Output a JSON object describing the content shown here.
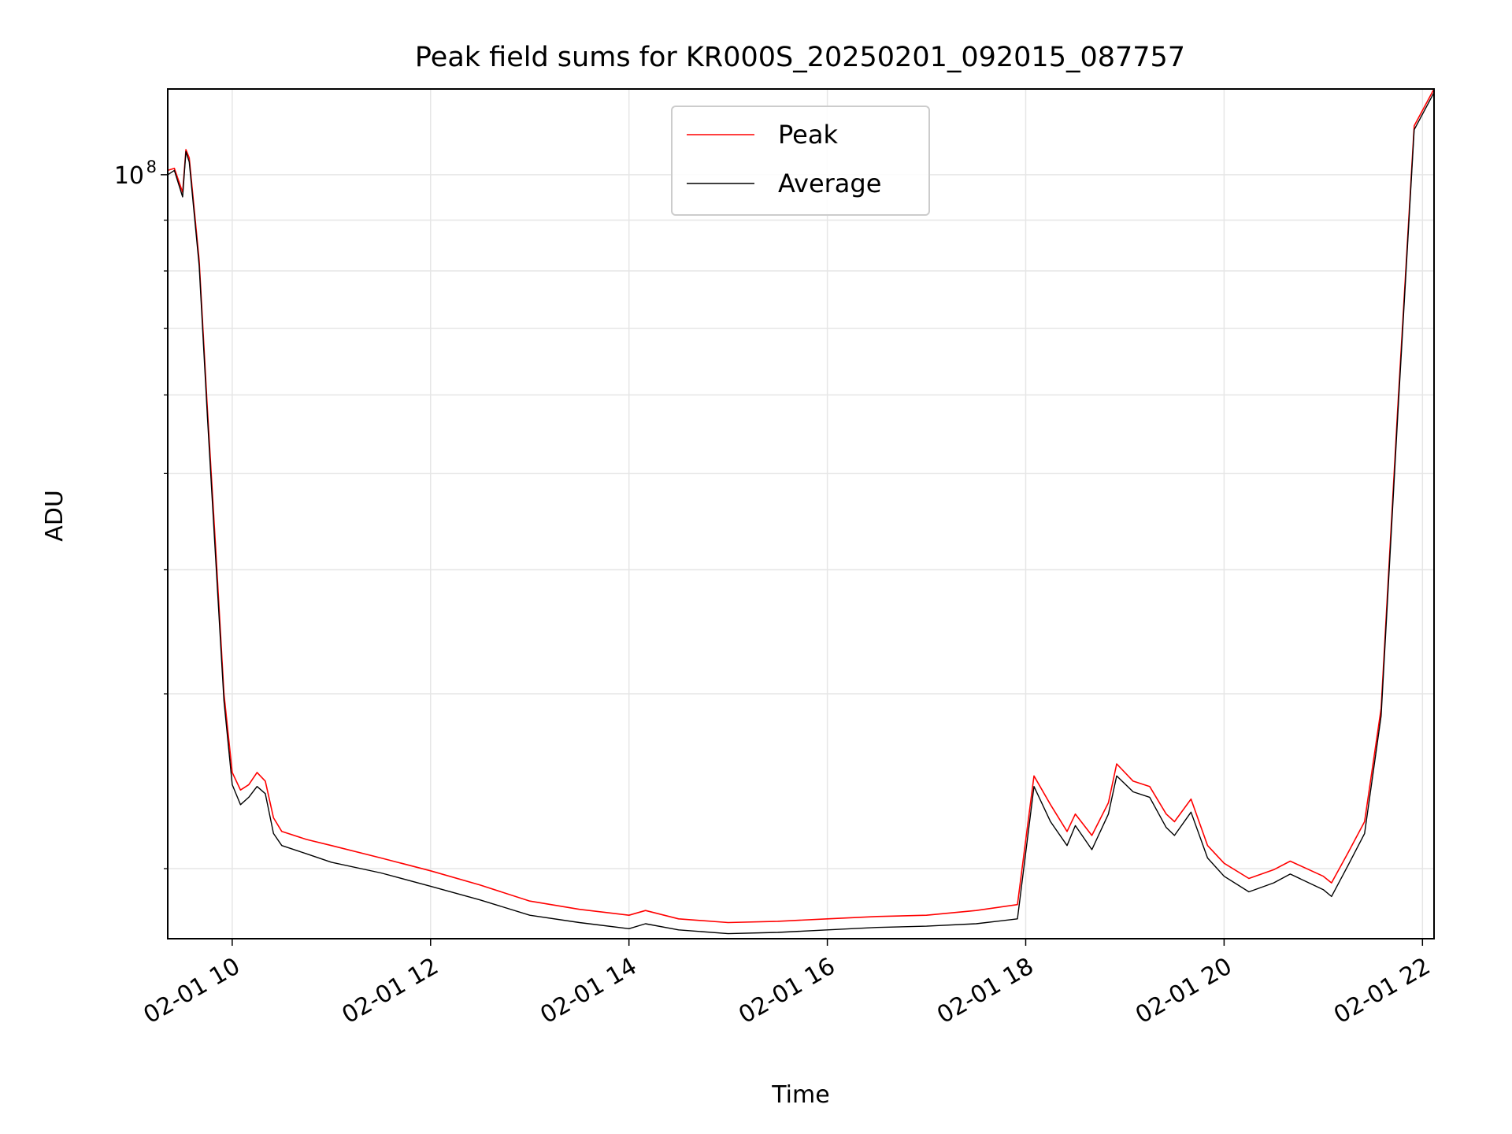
{
  "chart_data": {
    "type": "line",
    "title": "Peak field sums for KR000S_20250201_092015_087757",
    "xlabel": "Time",
    "ylabel": "ADU",
    "yscale": "log",
    "grid": true,
    "legend": "upper-center",
    "xlim": [
      "2025-02-01 09:21",
      "2025-02-01 22:07"
    ],
    "ylim": [
      17000000,
      122000000
    ],
    "x_ticks": [
      "2025-02-01 10:00",
      "2025-02-01 12:00",
      "2025-02-01 14:00",
      "2025-02-01 16:00",
      "2025-02-01 18:00",
      "2025-02-01 20:00",
      "2025-02-01 22:00"
    ],
    "x_tick_labels": [
      "02-01 10",
      "02-01 12",
      "02-01 14",
      "02-01 16",
      "02-01 18",
      "02-01 20",
      "02-01 22"
    ],
    "y_major_ticks": [
      {
        "value": 100000000,
        "base": "10",
        "exp": "8"
      }
    ],
    "y_minor_ticks": [
      20000000,
      30000000,
      40000000,
      50000000,
      60000000,
      70000000,
      80000000,
      90000000
    ],
    "x": [
      "2025-02-01 09:21",
      "2025-02-01 09:25",
      "2025-02-01 09:30",
      "2025-02-01 09:32",
      "2025-02-01 09:34",
      "2025-02-01 09:40",
      "2025-02-01 09:45",
      "2025-02-01 09:50",
      "2025-02-01 09:55",
      "2025-02-01 10:00",
      "2025-02-01 10:05",
      "2025-02-01 10:10",
      "2025-02-01 10:15",
      "2025-02-01 10:20",
      "2025-02-01 10:25",
      "2025-02-01 10:30",
      "2025-02-01 10:45",
      "2025-02-01 11:00",
      "2025-02-01 11:30",
      "2025-02-01 12:00",
      "2025-02-01 12:30",
      "2025-02-01 13:00",
      "2025-02-01 13:30",
      "2025-02-01 14:00",
      "2025-02-01 14:10",
      "2025-02-01 14:30",
      "2025-02-01 15:00",
      "2025-02-01 15:30",
      "2025-02-01 16:00",
      "2025-02-01 16:30",
      "2025-02-01 17:00",
      "2025-02-01 17:30",
      "2025-02-01 17:55",
      "2025-02-01 18:05",
      "2025-02-01 18:15",
      "2025-02-01 18:25",
      "2025-02-01 18:30",
      "2025-02-01 18:40",
      "2025-02-01 18:50",
      "2025-02-01 18:55",
      "2025-02-01 19:05",
      "2025-02-01 19:15",
      "2025-02-01 19:25",
      "2025-02-01 19:30",
      "2025-02-01 19:40",
      "2025-02-01 19:50",
      "2025-02-01 20:00",
      "2025-02-01 20:15",
      "2025-02-01 20:30",
      "2025-02-01 20:40",
      "2025-02-01 21:00",
      "2025-02-01 21:05",
      "2025-02-01 21:15",
      "2025-02-01 21:25",
      "2025-02-01 21:35",
      "2025-02-01 21:45",
      "2025-02-01 21:55",
      "2025-02-01 22:07"
    ],
    "series": [
      {
        "name": "Peak",
        "color": "#ff0000",
        "values": [
          101000000,
          101500000,
          96000000,
          106000000,
          104000000,
          82000000,
          58000000,
          42000000,
          30000000,
          25000000,
          24000000,
          24300000,
          25000000,
          24500000,
          22500000,
          21800000,
          21400000,
          21100000,
          20500000,
          19900000,
          19250000,
          18550000,
          18200000,
          17950000,
          18150000,
          17800000,
          17650000,
          17700000,
          17800000,
          17900000,
          17950000,
          18150000,
          18400000,
          24800000,
          23200000,
          21800000,
          22700000,
          21600000,
          23300000,
          25500000,
          24500000,
          24200000,
          22700000,
          22300000,
          23500000,
          21100000,
          20250000,
          19550000,
          19950000,
          20350000,
          19650000,
          19350000,
          20750000,
          22300000,
          29000000,
          58000000,
          112000000,
          122000000
        ]
      },
      {
        "name": "Average",
        "color": "#000000",
        "values": [
          100000000,
          101000000,
          95000000,
          105500000,
          103000000,
          81000000,
          57000000,
          41000000,
          29500000,
          24300000,
          23200000,
          23600000,
          24200000,
          23800000,
          21700000,
          21100000,
          20700000,
          20300000,
          19800000,
          19200000,
          18600000,
          17950000,
          17650000,
          17400000,
          17600000,
          17350000,
          17200000,
          17250000,
          17350000,
          17450000,
          17500000,
          17600000,
          17800000,
          24200000,
          22300000,
          21100000,
          22100000,
          20900000,
          22700000,
          24800000,
          23900000,
          23600000,
          22000000,
          21600000,
          22800000,
          20500000,
          19650000,
          18950000,
          19350000,
          19750000,
          19050000,
          18750000,
          20150000,
          21700000,
          28500000,
          57000000,
          111000000,
          121000000
        ]
      }
    ],
    "annotations": []
  }
}
